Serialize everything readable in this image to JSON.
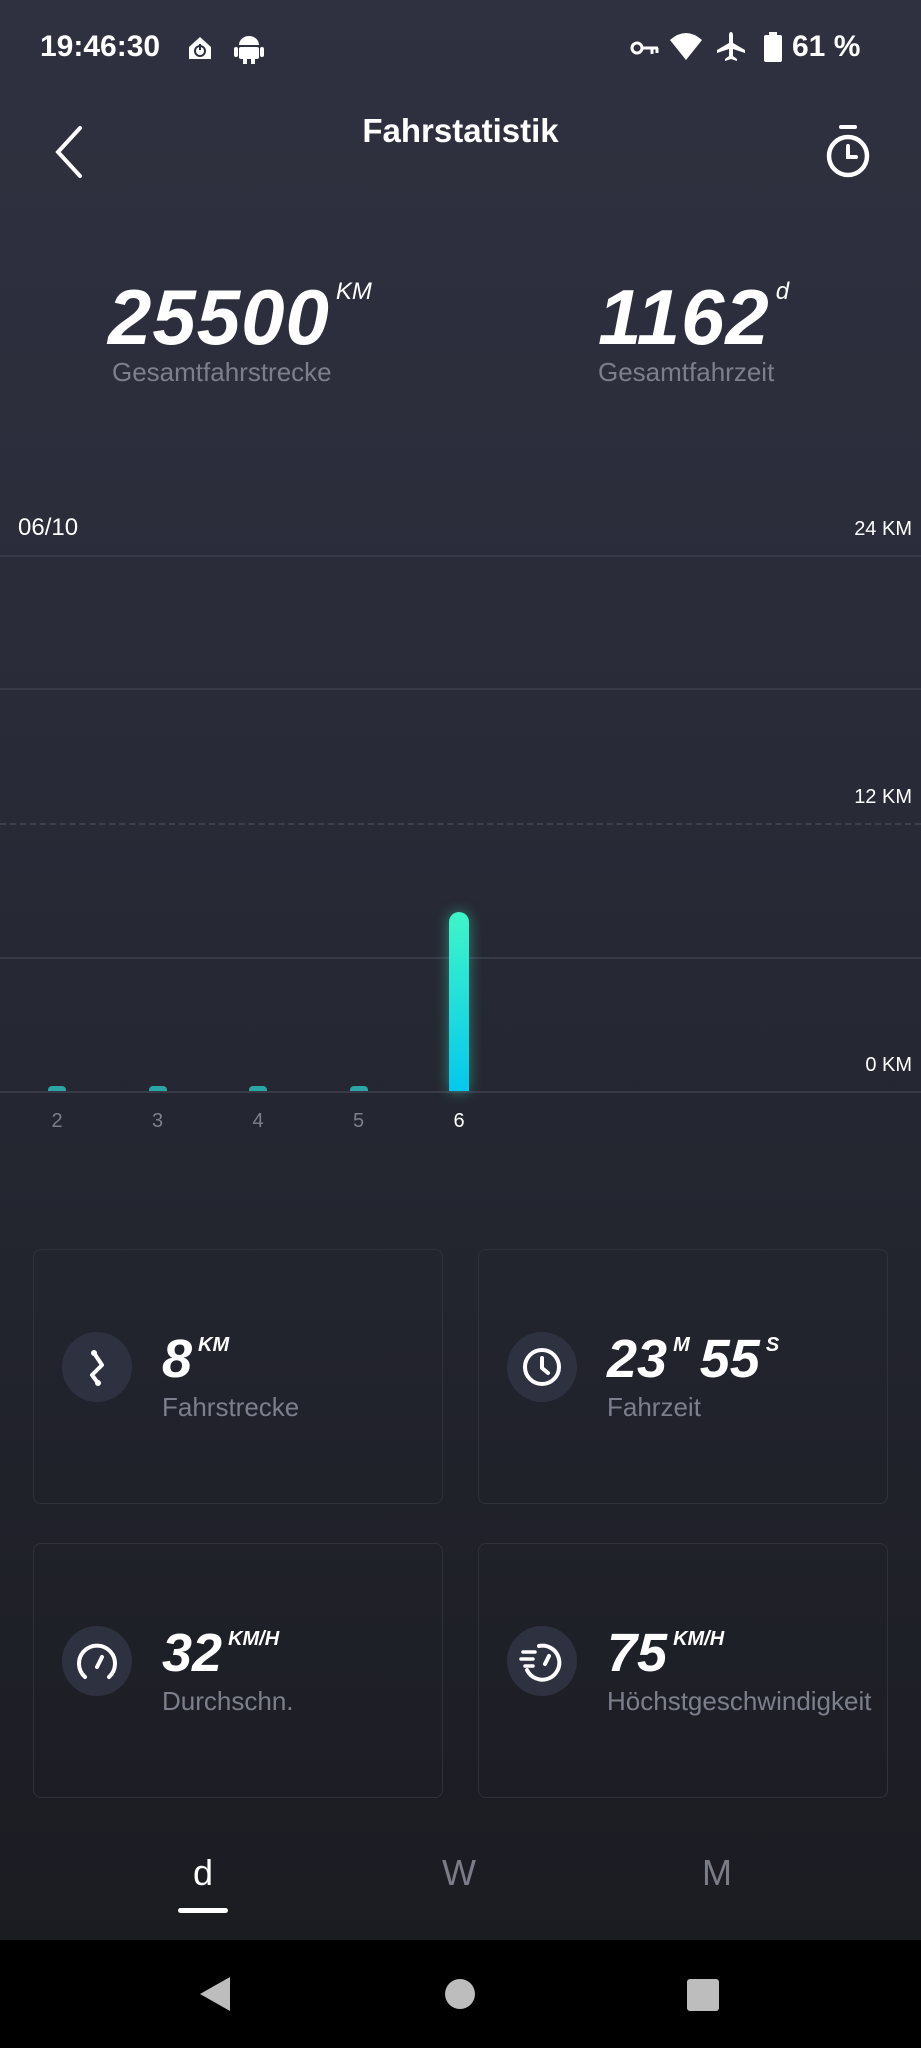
{
  "status_bar": {
    "time": "19:46:30",
    "battery": "61 %",
    "icons": [
      "home-power-icon",
      "android-icon",
      "vpn-key-icon",
      "wifi-icon",
      "airplane-icon",
      "battery-icon"
    ]
  },
  "header": {
    "title": "Fahrstatistik",
    "back_icon": "chevron-left-icon",
    "right_icon": "stopwatch-icon"
  },
  "totals": {
    "distance": {
      "value": "25500",
      "unit": "KM",
      "label": "Gesamtfahrstrecke"
    },
    "time": {
      "value": "1162",
      "unit": "d",
      "label": "Gesamtfahrzeit"
    }
  },
  "chart_data": {
    "type": "bar",
    "title": "06/10",
    "categories": [
      "2",
      "3",
      "4",
      "5",
      "6"
    ],
    "values": [
      0,
      0,
      0,
      0,
      8
    ],
    "selected": "6",
    "ylim": [
      0,
      24
    ],
    "y_ticks": [
      "0 KM",
      "12 KM",
      "24 KM"
    ],
    "grid": true,
    "colors": {
      "bar_top": "#3ff5c8",
      "bar_bottom": "#05c8ec",
      "bar_inactive": "#2aa6a6"
    }
  },
  "cards": [
    {
      "icon": "route-icon",
      "value": "8",
      "unit": "KM",
      "label": "Fahrstrecke"
    },
    {
      "icon": "clock-icon",
      "value": "23",
      "unit": "M",
      "value2": "55",
      "unit2": "S",
      "label": "Fahrzeit"
    },
    {
      "icon": "speedometer-icon",
      "value": "32",
      "unit": "KM/H",
      "label": "Durchschn."
    },
    {
      "icon": "fast-timer-icon",
      "value": "75",
      "unit": "KM/H",
      "label": "Höchstgeschwindigkeit"
    }
  ],
  "tabs": [
    {
      "label": "d",
      "active": true
    },
    {
      "label": "W",
      "active": false
    },
    {
      "label": "M",
      "active": false
    }
  ]
}
